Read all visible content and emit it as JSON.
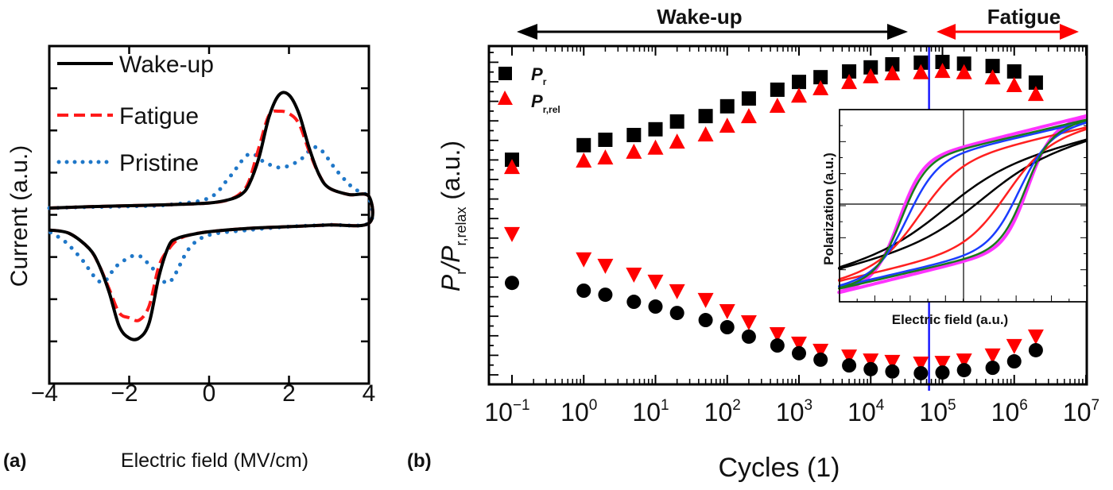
{
  "chart_data": [
    {
      "panel": "(a)",
      "type": "line",
      "xlabel": "Electric field (MV/cm)",
      "ylabel": "Current (a.u.)",
      "xlim": [
        -4,
        4
      ],
      "ylim": [
        -5,
        5
      ],
      "xticks": [
        "−4",
        "−2",
        "0",
        "2",
        "4"
      ],
      "xtick_values": [
        -4,
        -2,
        0,
        2,
        4
      ],
      "legend_position": "top-left",
      "series": [
        {
          "name": "Wake-up",
          "color": "#000000",
          "style": "solid",
          "upper": [
            [
              -4,
              0.2
            ],
            [
              -3,
              0.24
            ],
            [
              -2,
              0.27
            ],
            [
              -1,
              0.3
            ],
            [
              0,
              0.35
            ],
            [
              0.5,
              0.45
            ],
            [
              0.8,
              0.6
            ],
            [
              1.0,
              0.9
            ],
            [
              1.25,
              1.7
            ],
            [
              1.5,
              2.9
            ],
            [
              1.75,
              3.55
            ],
            [
              2.0,
              3.55
            ],
            [
              2.25,
              3.0
            ],
            [
              2.5,
              2.0
            ],
            [
              2.75,
              1.2
            ],
            [
              3.0,
              0.8
            ],
            [
              3.5,
              0.6
            ],
            [
              4,
              0.55
            ]
          ],
          "lower": [
            [
              4,
              -0.25
            ],
            [
              3,
              -0.3
            ],
            [
              2,
              -0.35
            ],
            [
              1,
              -0.4
            ],
            [
              0,
              -0.5
            ],
            [
              -0.5,
              -0.6
            ],
            [
              -0.8,
              -0.7
            ],
            [
              -1.0,
              -0.9
            ],
            [
              -1.25,
              -1.8
            ],
            [
              -1.5,
              -3.2
            ],
            [
              -1.75,
              -3.65
            ],
            [
              -2.0,
              -3.65
            ],
            [
              -2.25,
              -3.3
            ],
            [
              -2.5,
              -2.3
            ],
            [
              -2.75,
              -1.5
            ],
            [
              -3.0,
              -1.0
            ],
            [
              -3.5,
              -0.55
            ],
            [
              -4,
              -0.45
            ]
          ]
        },
        {
          "name": "Fatigue",
          "color": "#ff1a1a",
          "style": "dashed",
          "upper": [
            [
              -4,
              0.2
            ],
            [
              -3,
              0.24
            ],
            [
              -2,
              0.27
            ],
            [
              -1,
              0.3
            ],
            [
              0,
              0.35
            ],
            [
              0.5,
              0.45
            ],
            [
              0.8,
              0.65
            ],
            [
              1.0,
              1.0
            ],
            [
              1.25,
              2.0
            ],
            [
              1.5,
              2.95
            ],
            [
              1.75,
              3.07
            ],
            [
              2.0,
              3.0
            ],
            [
              2.25,
              2.7
            ],
            [
              2.5,
              1.9
            ],
            [
              2.75,
              1.2
            ],
            [
              3.0,
              0.8
            ],
            [
              3.5,
              0.6
            ],
            [
              4,
              0.55
            ]
          ],
          "lower": [
            [
              4,
              -0.25
            ],
            [
              3,
              -0.3
            ],
            [
              2,
              -0.35
            ],
            [
              1,
              -0.4
            ],
            [
              0,
              -0.5
            ],
            [
              -0.5,
              -0.6
            ],
            [
              -0.8,
              -0.75
            ],
            [
              -1.0,
              -1.0
            ],
            [
              -1.25,
              -1.5
            ],
            [
              -1.5,
              -2.7
            ],
            [
              -1.75,
              -3.12
            ],
            [
              -2.0,
              -3.05
            ],
            [
              -2.25,
              -2.9
            ],
            [
              -2.5,
              -2.2
            ],
            [
              -2.75,
              -1.5
            ],
            [
              -3.0,
              -1.0
            ],
            [
              -3.5,
              -0.55
            ],
            [
              -4,
              -0.45
            ]
          ]
        },
        {
          "name": "Pristine",
          "color": "#1f77c8",
          "style": "dotted",
          "upper": [
            [
              -4,
              0.2
            ],
            [
              -3,
              0.23
            ],
            [
              -2,
              0.25
            ],
            [
              -1,
              0.3
            ],
            [
              0,
              0.5
            ],
            [
              0.5,
              1.1
            ],
            [
              1.0,
              1.8
            ],
            [
              1.4,
              1.55
            ],
            [
              1.8,
              1.4
            ],
            [
              2.25,
              1.6
            ],
            [
              2.7,
              2.0
            ],
            [
              3.2,
              1.3
            ],
            [
              3.6,
              0.8
            ],
            [
              4,
              0.5
            ]
          ],
          "lower": [
            [
              4,
              -0.25
            ],
            [
              3,
              -0.3
            ],
            [
              2,
              -0.35
            ],
            [
              1,
              -0.45
            ],
            [
              0,
              -0.6
            ],
            [
              -0.5,
              -1.0
            ],
            [
              -1.0,
              -2.0
            ],
            [
              -1.4,
              -1.6
            ],
            [
              -1.8,
              -1.2
            ],
            [
              -2.3,
              -1.5
            ],
            [
              -2.7,
              -2.0
            ],
            [
              -3.2,
              -1.3
            ],
            [
              -3.6,
              -0.8
            ],
            [
              -4,
              -0.5
            ]
          ]
        }
      ]
    },
    {
      "panel": "(b)",
      "type": "scatter",
      "xlabel": "Cycles (1)",
      "ylabel_main": "P",
      "ylabel_sub1": "r",
      "ylabel_mid": "/P",
      "ylabel_sub2": "r,relax",
      "ylabel_unit": " (a.u.)",
      "xscale": "log",
      "xlim": [
        0.1,
        10000000
      ],
      "ylim": [
        0,
        10
      ],
      "xticks_base": "10",
      "xticks_exp": [
        "−1",
        "0",
        "1",
        "2",
        "3",
        "4",
        "5",
        "6",
        "7"
      ],
      "legend_position": "top-left",
      "x": [
        0.1,
        1,
        2,
        5,
        10,
        20,
        50,
        100,
        200,
        500,
        1000,
        2000,
        5000,
        10000,
        20000,
        50000,
        100000,
        200000,
        500000,
        1000000,
        2000000
      ],
      "series": [
        {
          "name_main": "P",
          "name_sub": "r",
          "marker": "square",
          "color": "#000000",
          "values": [
            6.64,
            7.07,
            7.23,
            7.37,
            7.54,
            7.77,
            7.93,
            8.22,
            8.45,
            8.71,
            8.94,
            9.08,
            9.25,
            9.37,
            9.46,
            9.51,
            9.53,
            9.48,
            9.41,
            9.25,
            8.92
          ]
        },
        {
          "name_main": "P",
          "name_sub": "r,rel",
          "marker": "triangle-up",
          "color": "#ff0000",
          "values": [
            6.43,
            6.62,
            6.71,
            6.88,
            7.0,
            7.18,
            7.39,
            7.65,
            7.93,
            8.24,
            8.54,
            8.76,
            8.94,
            9.11,
            9.2,
            9.23,
            9.27,
            9.23,
            9.08,
            8.85,
            8.59
          ]
        },
        {
          "marker": "triangle-down",
          "color": "#ff0000",
          "values": [
            4.44,
            3.69,
            3.5,
            3.24,
            3.03,
            2.75,
            2.49,
            2.16,
            1.83,
            1.48,
            1.2,
            0.99,
            0.82,
            0.7,
            0.66,
            0.61,
            0.63,
            0.7,
            0.85,
            1.13,
            1.41
          ]
        },
        {
          "marker": "circle",
          "color": "#000000",
          "values": [
            3.0,
            2.77,
            2.65,
            2.44,
            2.3,
            2.11,
            1.9,
            1.69,
            1.41,
            1.15,
            0.92,
            0.73,
            0.56,
            0.45,
            0.38,
            0.33,
            0.35,
            0.42,
            0.49,
            0.68,
            1.01
          ]
        }
      ],
      "divider_cycles": 65000,
      "divider_color": "#1a1aff",
      "annotations": [
        {
          "text": "Wake-up",
          "color": "#000000"
        },
        {
          "text": "Fatigue",
          "color": "#ff0000"
        }
      ],
      "inset": {
        "xlabel": "Electric field (a.u.)",
        "ylabel": "Polarization (a.u.)",
        "loop_colors": [
          "#000000",
          "#ff2020",
          "#1a3cff",
          "#1a7a1a",
          "#ff33ff"
        ]
      }
    }
  ],
  "labels": {
    "panel_a": "(a)",
    "panel_b": "(b)"
  }
}
